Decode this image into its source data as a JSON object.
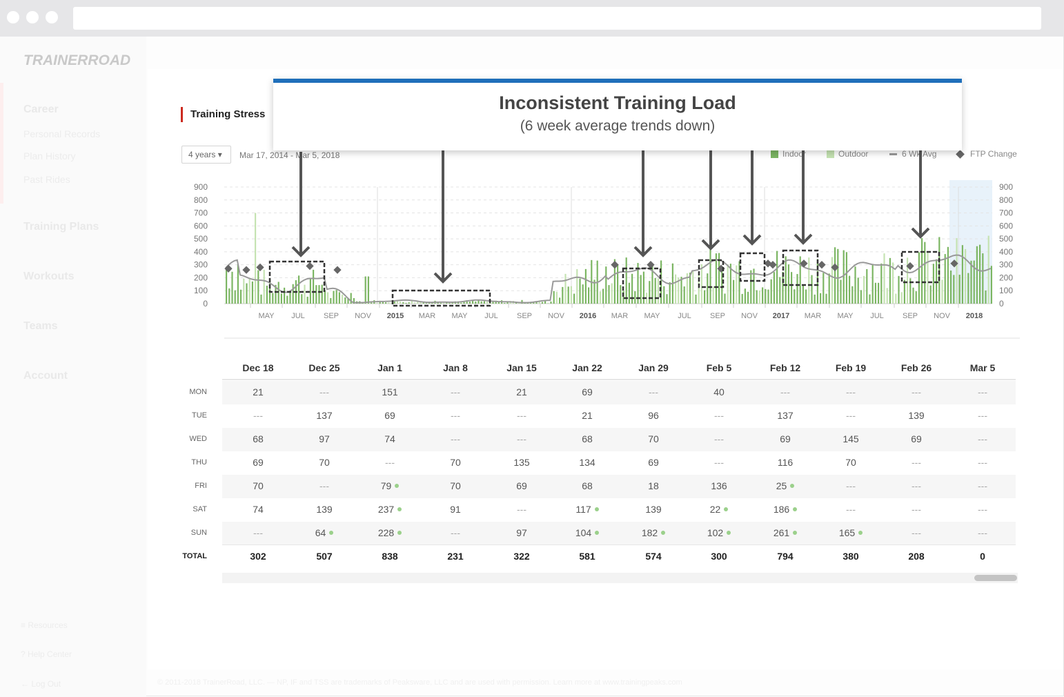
{
  "sidebar": {
    "logo": "TRAINERROAD",
    "career": "Career",
    "personal_records": "Personal Records",
    "plan_history": "Plan History",
    "past_rides": "Past Rides",
    "training_plans": "Training Plans",
    "workouts": "Workouts",
    "teams": "Teams",
    "account": "Account",
    "resources": "Resources",
    "help_center": "Help Center",
    "log_out": "Log Out"
  },
  "footer": "© 2011-2018 TrainerRoad, LLC. — NP, IF and TSS are trademarks of Peaksware, LLC and are used with permission. Learn more at www.trainingpeaks.com",
  "section_title": "Training Stress",
  "range_select": "4 years",
  "date_range": "Mar 17, 2014 - Mar 5, 2018",
  "legend": {
    "indoor": "Indoor",
    "outdoor": "Outdoor",
    "avg": "6 Wk Avg",
    "ftp": "FTP Change"
  },
  "callout": {
    "title": "Inconsistent Training Load",
    "subtitle": "(6 week average trends down)"
  },
  "colors": {
    "indoor": "#7cb663",
    "outdoor": "#c5e3b2",
    "avg_line": "#999999",
    "ftp_marker": "#666666",
    "accent_red": "#cc2a1f",
    "callout_blue": "#1f6fba"
  },
  "chart_data": {
    "type": "bar",
    "y_ticks": [
      "900",
      "800",
      "700",
      "600",
      "500",
      "400",
      "300",
      "200",
      "100",
      "0"
    ],
    "ylim": [
      0,
      900
    ],
    "x_labels": [
      "MAY",
      "JUL",
      "SEP",
      "NOV",
      "2015",
      "MAR",
      "MAY",
      "JUL",
      "SEP",
      "NOV",
      "2016",
      "MAR",
      "MAY",
      "JUL",
      "SEP",
      "NOV",
      "2017",
      "MAR",
      "MAY",
      "JUL",
      "SEP",
      "NOV",
      "2018"
    ],
    "bold_x_labels": [
      "2015",
      "2016",
      "2017",
      "2018"
    ],
    "series": [
      {
        "name": "Indoor"
      },
      {
        "name": "Outdoor"
      },
      {
        "name": "6 Wk Avg"
      },
      {
        "name": "FTP Change"
      }
    ],
    "ftp_changes": [
      270,
      260,
      280,
      290,
      260,
      300,
      300,
      270,
      310,
      300,
      310,
      300,
      280,
      290,
      310,
      320,
      340
    ]
  },
  "weeks": [
    "Dec 18",
    "Dec 25",
    "Jan 1",
    "Jan 8",
    "Jan 15",
    "Jan 22",
    "Jan 29",
    "Feb 5",
    "Feb 12",
    "Feb 19",
    "Feb 26",
    "Mar 5"
  ],
  "days": [
    "MON",
    "TUE",
    "WED",
    "THU",
    "FRI",
    "SAT",
    "SUN"
  ],
  "rows": [
    [
      "21",
      "---",
      "151",
      "---",
      "21",
      "69",
      "---",
      "40",
      "---",
      "---",
      "---",
      "---"
    ],
    [
      "---",
      "137",
      "69",
      "---",
      "---",
      "21",
      "96",
      "---",
      "137",
      "---",
      "139",
      "---"
    ],
    [
      "68",
      "97",
      "74",
      "---",
      "---",
      "68",
      "70",
      "---",
      "69",
      "145",
      "69",
      "---"
    ],
    [
      "69",
      "70",
      "---",
      "70",
      "135",
      "134",
      "69",
      "---",
      "116",
      "70",
      "---",
      "---"
    ],
    [
      "70",
      "---",
      "79",
      "70",
      "69",
      "68",
      "18",
      "136",
      "25",
      "---",
      "---",
      "---"
    ],
    [
      "74",
      "139",
      "237",
      "91",
      "---",
      "117",
      "139",
      "22",
      "186",
      "---",
      "---",
      "---"
    ],
    [
      "---",
      "64",
      "228",
      "---",
      "97",
      "104",
      "182",
      "102",
      "261",
      "165",
      "---",
      "---"
    ]
  ],
  "outdoor_marks": [
    [
      false,
      false,
      false,
      false,
      false,
      false,
      false,
      false,
      false,
      false,
      false,
      false
    ],
    [
      false,
      false,
      false,
      false,
      false,
      false,
      false,
      false,
      false,
      false,
      false,
      false
    ],
    [
      false,
      false,
      false,
      false,
      false,
      false,
      false,
      false,
      false,
      false,
      false,
      false
    ],
    [
      false,
      false,
      false,
      false,
      false,
      false,
      false,
      false,
      false,
      false,
      false,
      false
    ],
    [
      false,
      false,
      true,
      false,
      false,
      false,
      false,
      false,
      true,
      false,
      false,
      false
    ],
    [
      false,
      false,
      true,
      false,
      false,
      true,
      false,
      true,
      true,
      false,
      false,
      false
    ],
    [
      false,
      true,
      true,
      false,
      false,
      true,
      true,
      true,
      true,
      true,
      false,
      false
    ]
  ],
  "total_label": "TOTAL",
  "totals": [
    "302",
    "507",
    "838",
    "231",
    "322",
    "581",
    "574",
    "300",
    "794",
    "380",
    "208",
    "0"
  ]
}
